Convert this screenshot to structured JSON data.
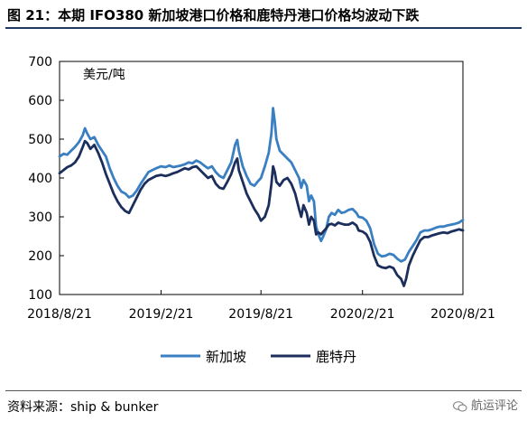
{
  "figure": {
    "title": "图 21：本期 IFO380 新加坡港口价格和鹿特丹港口价格均波动下跌",
    "source": "资料来源：ship & bunker",
    "watermark": "航运评论",
    "watermark_icon": "wechat-icon",
    "rule_color": "#1f3864"
  },
  "chart_data": {
    "type": "line",
    "unit_label": "美元/吨",
    "ylim": [
      100,
      700
    ],
    "yticks": [
      100,
      200,
      300,
      400,
      500,
      600,
      700
    ],
    "xlim": [
      "2018-08-21",
      "2020-08-21"
    ],
    "xticks": [
      {
        "date": "2018-08-21",
        "label": "2018/8/21"
      },
      {
        "date": "2019-02-21",
        "label": "2019/2/21"
      },
      {
        "date": "2019-08-21",
        "label": "2019/8/21"
      },
      {
        "date": "2020-02-21",
        "label": "2020/2/21"
      },
      {
        "date": "2020-08-21",
        "label": "2020/8/21"
      }
    ],
    "grid": false,
    "legend_position": "bottom-center",
    "series": [
      {
        "name": "新加坡",
        "color": "#3a7fc1",
        "points": [
          [
            "2018-08-21",
            455
          ],
          [
            "2018-08-28",
            462
          ],
          [
            "2018-09-04",
            460
          ],
          [
            "2018-09-11",
            470
          ],
          [
            "2018-09-18",
            480
          ],
          [
            "2018-09-25",
            492
          ],
          [
            "2018-10-02",
            510
          ],
          [
            "2018-10-06",
            528
          ],
          [
            "2018-10-10",
            515
          ],
          [
            "2018-10-16",
            500
          ],
          [
            "2018-10-23",
            505
          ],
          [
            "2018-10-30",
            485
          ],
          [
            "2018-11-06",
            470
          ],
          [
            "2018-11-13",
            455
          ],
          [
            "2018-11-20",
            425
          ],
          [
            "2018-11-27",
            400
          ],
          [
            "2018-12-04",
            380
          ],
          [
            "2018-12-11",
            365
          ],
          [
            "2018-12-18",
            360
          ],
          [
            "2018-12-25",
            350
          ],
          [
            "2019-01-01",
            355
          ],
          [
            "2019-01-08",
            368
          ],
          [
            "2019-01-15",
            385
          ],
          [
            "2019-01-22",
            400
          ],
          [
            "2019-01-29",
            415
          ],
          [
            "2019-02-05",
            420
          ],
          [
            "2019-02-12",
            425
          ],
          [
            "2019-02-21",
            430
          ],
          [
            "2019-03-01",
            428
          ],
          [
            "2019-03-08",
            432
          ],
          [
            "2019-03-15",
            428
          ],
          [
            "2019-03-22",
            430
          ],
          [
            "2019-03-29",
            432
          ],
          [
            "2019-04-05",
            435
          ],
          [
            "2019-04-12",
            440
          ],
          [
            "2019-04-19",
            438
          ],
          [
            "2019-04-26",
            445
          ],
          [
            "2019-05-03",
            440
          ],
          [
            "2019-05-10",
            432
          ],
          [
            "2019-05-17",
            425
          ],
          [
            "2019-05-24",
            430
          ],
          [
            "2019-05-31",
            415
          ],
          [
            "2019-06-07",
            405
          ],
          [
            "2019-06-14",
            400
          ],
          [
            "2019-06-21",
            420
          ],
          [
            "2019-06-28",
            440
          ],
          [
            "2019-07-05",
            485
          ],
          [
            "2019-07-09",
            498
          ],
          [
            "2019-07-12",
            470
          ],
          [
            "2019-07-19",
            430
          ],
          [
            "2019-07-26",
            405
          ],
          [
            "2019-08-02",
            385
          ],
          [
            "2019-08-09",
            380
          ],
          [
            "2019-08-16",
            392
          ],
          [
            "2019-08-21",
            400
          ],
          [
            "2019-08-28",
            430
          ],
          [
            "2019-09-04",
            465
          ],
          [
            "2019-09-09",
            515
          ],
          [
            "2019-09-12",
            580
          ],
          [
            "2019-09-15",
            545
          ],
          [
            "2019-09-18",
            500
          ],
          [
            "2019-09-24",
            470
          ],
          [
            "2019-10-01",
            460
          ],
          [
            "2019-10-08",
            450
          ],
          [
            "2019-10-15",
            440
          ],
          [
            "2019-10-22",
            420
          ],
          [
            "2019-10-29",
            400
          ],
          [
            "2019-11-02",
            375
          ],
          [
            "2019-11-06",
            395
          ],
          [
            "2019-11-12",
            380
          ],
          [
            "2019-11-16",
            340
          ],
          [
            "2019-11-20",
            355
          ],
          [
            "2019-11-25",
            340
          ],
          [
            "2019-11-29",
            275
          ],
          [
            "2019-12-03",
            255
          ],
          [
            "2019-12-08",
            238
          ],
          [
            "2019-12-12",
            250
          ],
          [
            "2019-12-17",
            268
          ],
          [
            "2019-12-22",
            300
          ],
          [
            "2019-12-27",
            310
          ],
          [
            "2020-01-02",
            305
          ],
          [
            "2020-01-08",
            318
          ],
          [
            "2020-01-14",
            310
          ],
          [
            "2020-01-20",
            312
          ],
          [
            "2020-01-27",
            318
          ],
          [
            "2020-02-03",
            320
          ],
          [
            "2020-02-10",
            310
          ],
          [
            "2020-02-14",
            300
          ],
          [
            "2020-02-21",
            298
          ],
          [
            "2020-02-28",
            290
          ],
          [
            "2020-03-06",
            270
          ],
          [
            "2020-03-13",
            230
          ],
          [
            "2020-03-20",
            205
          ],
          [
            "2020-03-27",
            198
          ],
          [
            "2020-04-03",
            200
          ],
          [
            "2020-04-10",
            205
          ],
          [
            "2020-04-17",
            202
          ],
          [
            "2020-04-24",
            192
          ],
          [
            "2020-05-01",
            185
          ],
          [
            "2020-05-08",
            190
          ],
          [
            "2020-05-15",
            210
          ],
          [
            "2020-05-22",
            225
          ],
          [
            "2020-05-29",
            240
          ],
          [
            "2020-06-05",
            260
          ],
          [
            "2020-06-12",
            265
          ],
          [
            "2020-06-19",
            265
          ],
          [
            "2020-06-26",
            268
          ],
          [
            "2020-07-03",
            272
          ],
          [
            "2020-07-10",
            275
          ],
          [
            "2020-07-17",
            275
          ],
          [
            "2020-07-24",
            278
          ],
          [
            "2020-07-31",
            280
          ],
          [
            "2020-08-07",
            282
          ],
          [
            "2020-08-14",
            285
          ],
          [
            "2020-08-21",
            292
          ]
        ]
      },
      {
        "name": "鹿特丹",
        "color": "#1b2e5c",
        "points": [
          [
            "2018-08-21",
            412
          ],
          [
            "2018-08-28",
            420
          ],
          [
            "2018-09-04",
            428
          ],
          [
            "2018-09-11",
            432
          ],
          [
            "2018-09-18",
            440
          ],
          [
            "2018-09-25",
            455
          ],
          [
            "2018-10-02",
            480
          ],
          [
            "2018-10-06",
            495
          ],
          [
            "2018-10-10",
            490
          ],
          [
            "2018-10-16",
            475
          ],
          [
            "2018-10-23",
            485
          ],
          [
            "2018-10-30",
            465
          ],
          [
            "2018-11-06",
            440
          ],
          [
            "2018-11-13",
            410
          ],
          [
            "2018-11-20",
            385
          ],
          [
            "2018-11-27",
            360
          ],
          [
            "2018-12-04",
            340
          ],
          [
            "2018-12-11",
            325
          ],
          [
            "2018-12-18",
            315
          ],
          [
            "2018-12-25",
            310
          ],
          [
            "2019-01-01",
            330
          ],
          [
            "2019-01-08",
            350
          ],
          [
            "2019-01-15",
            370
          ],
          [
            "2019-01-22",
            385
          ],
          [
            "2019-01-29",
            395
          ],
          [
            "2019-02-05",
            400
          ],
          [
            "2019-02-12",
            405
          ],
          [
            "2019-02-21",
            408
          ],
          [
            "2019-03-01",
            405
          ],
          [
            "2019-03-08",
            408
          ],
          [
            "2019-03-15",
            412
          ],
          [
            "2019-03-22",
            415
          ],
          [
            "2019-03-29",
            420
          ],
          [
            "2019-04-05",
            425
          ],
          [
            "2019-04-12",
            422
          ],
          [
            "2019-04-19",
            428
          ],
          [
            "2019-04-26",
            430
          ],
          [
            "2019-05-03",
            420
          ],
          [
            "2019-05-10",
            410
          ],
          [
            "2019-05-17",
            400
          ],
          [
            "2019-05-24",
            405
          ],
          [
            "2019-05-31",
            385
          ],
          [
            "2019-06-07",
            375
          ],
          [
            "2019-06-14",
            372
          ],
          [
            "2019-06-21",
            390
          ],
          [
            "2019-06-28",
            410
          ],
          [
            "2019-07-05",
            440
          ],
          [
            "2019-07-09",
            450
          ],
          [
            "2019-07-12",
            420
          ],
          [
            "2019-07-19",
            390
          ],
          [
            "2019-07-26",
            360
          ],
          [
            "2019-08-02",
            340
          ],
          [
            "2019-08-09",
            320
          ],
          [
            "2019-08-16",
            305
          ],
          [
            "2019-08-21",
            290
          ],
          [
            "2019-08-28",
            300
          ],
          [
            "2019-09-04",
            330
          ],
          [
            "2019-09-09",
            385
          ],
          [
            "2019-09-12",
            430
          ],
          [
            "2019-09-15",
            415
          ],
          [
            "2019-09-18",
            390
          ],
          [
            "2019-09-24",
            380
          ],
          [
            "2019-10-01",
            395
          ],
          [
            "2019-10-08",
            400
          ],
          [
            "2019-10-15",
            385
          ],
          [
            "2019-10-22",
            360
          ],
          [
            "2019-10-29",
            320
          ],
          [
            "2019-11-02",
            300
          ],
          [
            "2019-11-06",
            330
          ],
          [
            "2019-11-12",
            310
          ],
          [
            "2019-11-16",
            280
          ],
          [
            "2019-11-20",
            300
          ],
          [
            "2019-11-25",
            290
          ],
          [
            "2019-11-29",
            255
          ],
          [
            "2019-12-03",
            260
          ],
          [
            "2019-12-08",
            255
          ],
          [
            "2019-12-12",
            262
          ],
          [
            "2019-12-17",
            270
          ],
          [
            "2019-12-22",
            280
          ],
          [
            "2019-12-27",
            282
          ],
          [
            "2020-01-02",
            278
          ],
          [
            "2020-01-08",
            285
          ],
          [
            "2020-01-14",
            282
          ],
          [
            "2020-01-20",
            280
          ],
          [
            "2020-01-27",
            280
          ],
          [
            "2020-02-03",
            285
          ],
          [
            "2020-02-10",
            278
          ],
          [
            "2020-02-14",
            265
          ],
          [
            "2020-02-21",
            262
          ],
          [
            "2020-02-28",
            255
          ],
          [
            "2020-03-06",
            235
          ],
          [
            "2020-03-13",
            200
          ],
          [
            "2020-03-20",
            175
          ],
          [
            "2020-03-27",
            170
          ],
          [
            "2020-04-03",
            168
          ],
          [
            "2020-04-10",
            172
          ],
          [
            "2020-04-17",
            168
          ],
          [
            "2020-04-24",
            150
          ],
          [
            "2020-05-01",
            140
          ],
          [
            "2020-05-06",
            122
          ],
          [
            "2020-05-10",
            140
          ],
          [
            "2020-05-15",
            175
          ],
          [
            "2020-05-22",
            200
          ],
          [
            "2020-05-29",
            220
          ],
          [
            "2020-06-05",
            240
          ],
          [
            "2020-06-12",
            248
          ],
          [
            "2020-06-19",
            248
          ],
          [
            "2020-06-26",
            252
          ],
          [
            "2020-07-03",
            255
          ],
          [
            "2020-07-10",
            258
          ],
          [
            "2020-07-17",
            260
          ],
          [
            "2020-07-24",
            258
          ],
          [
            "2020-07-31",
            262
          ],
          [
            "2020-08-07",
            265
          ],
          [
            "2020-08-14",
            268
          ],
          [
            "2020-08-21",
            265
          ]
        ]
      }
    ]
  }
}
